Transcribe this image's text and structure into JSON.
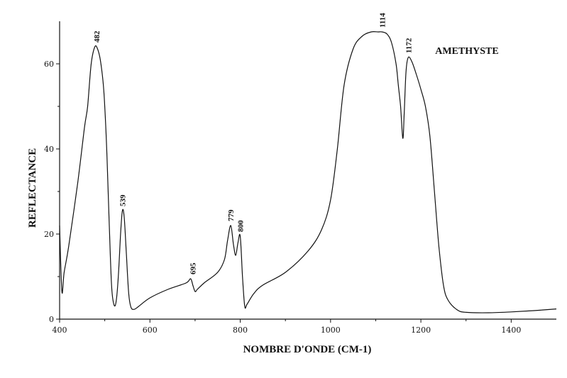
{
  "chart_data": {
    "type": "line",
    "title": "AMETHYSTE",
    "xlabel": "NOMBRE D'ONDE (CM-1)",
    "ylabel": "REFLECTANCE",
    "xlim": [
      400,
      1500
    ],
    "ylim": [
      0,
      70
    ],
    "xticks": [
      400,
      600,
      800,
      1000,
      1200,
      1400
    ],
    "yticks": [
      0,
      20,
      40,
      60
    ],
    "grid": false,
    "series": [
      {
        "x": [
          400,
          405,
          410,
          420,
          440,
          455,
          462,
          470,
          478,
          484,
          490,
          496,
          500,
          505,
          510,
          515,
          520,
          525,
          530,
          535,
          539,
          543,
          548,
          553,
          558,
          565,
          575,
          600,
          640,
          680,
          690,
          695,
          700,
          705,
          720,
          750,
          765,
          772,
          779,
          785,
          790,
          795,
          800,
          805,
          810,
          815,
          830,
          850,
          900,
          950,
          980,
          1000,
          1015,
          1030,
          1050,
          1070,
          1090,
          1105,
          1114,
          1125,
          1135,
          1145,
          1150,
          1155,
          1160,
          1163,
          1167,
          1172,
          1180,
          1190,
          1200,
          1210,
          1220,
          1230,
          1240,
          1250,
          1260,
          1280,
          1300,
          1350,
          1400,
          1450,
          1500
        ],
        "y": [
          22,
          6.5,
          11,
          17,
          32,
          45,
          50,
          60,
          64,
          63.5,
          61,
          56,
          50,
          38,
          22,
          8,
          3.5,
          4,
          10,
          20,
          25.5,
          24,
          15,
          6,
          2.8,
          2.3,
          3,
          5,
          7,
          8.5,
          9.5,
          8,
          6.5,
          7,
          8.5,
          11,
          14,
          18.5,
          22,
          17.5,
          15,
          18,
          19.5,
          10,
          3,
          3.5,
          6,
          8,
          11,
          16,
          21,
          28,
          40,
          55,
          63.5,
          66.5,
          67.5,
          67.5,
          67.5,
          67,
          65,
          60,
          55,
          50,
          42.5,
          48,
          58,
          61.5,
          60.5,
          57.5,
          54,
          50,
          43,
          30,
          17,
          8,
          4.5,
          2.2,
          1.6,
          1.5,
          1.7,
          2,
          2.4
        ]
      }
    ],
    "annotations": [
      {
        "text": "482",
        "x": 482,
        "y": 64
      },
      {
        "text": "539",
        "x": 539,
        "y": 25.5
      },
      {
        "text": "695",
        "x": 695,
        "y": 9.5
      },
      {
        "text": "779",
        "x": 779,
        "y": 22
      },
      {
        "text": "800",
        "x": 800,
        "y": 19.5
      },
      {
        "text": "1114",
        "x": 1114,
        "y": 67.5
      },
      {
        "text": "1172",
        "x": 1172,
        "y": 61.5
      }
    ]
  }
}
